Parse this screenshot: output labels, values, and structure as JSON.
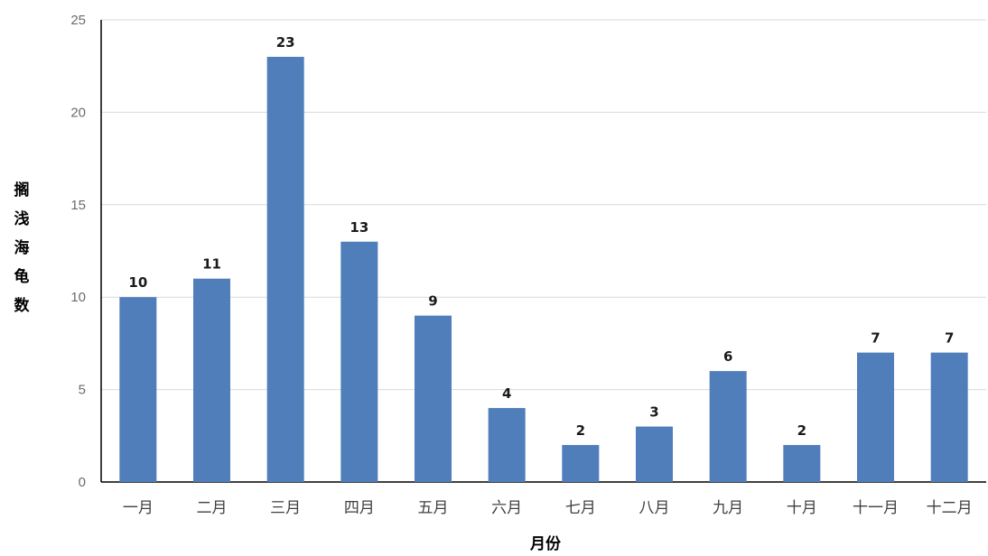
{
  "chart_data": {
    "type": "bar",
    "categories": [
      "一月",
      "二月",
      "三月",
      "四月",
      "五月",
      "六月",
      "七月",
      "八月",
      "九月",
      "十月",
      "十一月",
      "十二月"
    ],
    "values": [
      10,
      11,
      23,
      13,
      9,
      4,
      2,
      3,
      6,
      2,
      7,
      7
    ],
    "xlabel": "月份",
    "ylabel": "搁浅海龟数",
    "ylim": [
      0,
      25
    ],
    "yticks": [
      0,
      5,
      10,
      15,
      20,
      25
    ],
    "grid": true,
    "data_labels": true,
    "legend": "none",
    "colors": {
      "bar": "#4f7ebb",
      "grid": "#d9d9d9",
      "axis": "#000000"
    }
  }
}
